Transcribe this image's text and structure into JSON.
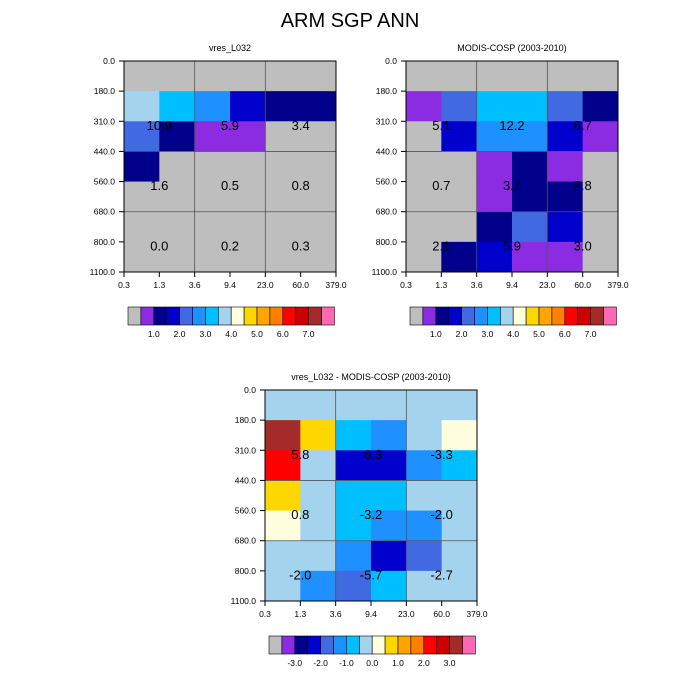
{
  "title": "ARM SGP ANN",
  "colors": {
    "missing": "#bebebe",
    "frame": "#000000",
    "region_line": "#555555",
    "abs_scale": [
      "#8b2be2",
      "#00008b",
      "#0000cd",
      "#4169e1",
      "#1e90ff",
      "#00bfff",
      "#a4d3ee",
      "#ffffe0",
      "#ffd700",
      "#ffa500",
      "#ff7f00",
      "#ff0000",
      "#cd0000",
      "#a52a2a",
      "#ff69b4"
    ],
    "diff_scale": [
      "#8b2be2",
      "#00008b",
      "#0000cd",
      "#4169e1",
      "#1e90ff",
      "#00bfff",
      "#a4d3ee",
      "#ffffe0",
      "#ffd700",
      "#ffa500",
      "#ff7f00",
      "#ff0000",
      "#cd0000",
      "#a52a2a",
      "#ff69b4"
    ]
  },
  "chart_data": [
    {
      "type": "heatmap",
      "title": "vres_L032",
      "x_ticks": [
        "0.3",
        "1.3",
        "3.6",
        "9.4",
        "23.0",
        "60.0",
        "379.0"
      ],
      "y_ticks": [
        "0.0",
        "180.0",
        "310.0",
        "440.0",
        "560.0",
        "680.0",
        "800.0",
        "1100.0"
      ],
      "cell_colors": [
        [
          "#bebebe",
          "#bebebe",
          "#bebebe",
          "#bebebe",
          "#bebebe",
          "#bebebe"
        ],
        [
          "#a4d3ee",
          "#00bfff",
          "#1e90ff",
          "#0000cd",
          "#00008b",
          "#00008b"
        ],
        [
          "#4169e1",
          "#00008b",
          "#8b2be2",
          "#8b2be2",
          "#bebebe",
          "#bebebe"
        ],
        [
          "#00008b",
          "#bebebe",
          "#bebebe",
          "#bebebe",
          "#bebebe",
          "#bebebe"
        ],
        [
          "#bebebe",
          "#bebebe",
          "#bebebe",
          "#bebebe",
          "#bebebe",
          "#bebebe"
        ],
        [
          "#bebebe",
          "#bebebe",
          "#bebebe",
          "#bebebe",
          "#bebebe",
          "#bebebe"
        ],
        [
          "#bebebe",
          "#bebebe",
          "#bebebe",
          "#bebebe",
          "#bebebe",
          "#bebebe"
        ]
      ],
      "regions": [
        [
          "10.9",
          "5.9",
          "3.4"
        ],
        [
          "1.6",
          "0.5",
          "0.8"
        ],
        [
          "0.0",
          "0.2",
          "0.3"
        ]
      ],
      "colorbar": {
        "boxes": [
          "#bebebe",
          "#8b2be2",
          "#00008b",
          "#0000cd",
          "#4169e1",
          "#1e90ff",
          "#00bfff",
          "#a4d3ee",
          "#ffffe0",
          "#ffd700",
          "#ffa500",
          "#ff7f00",
          "#ff0000",
          "#cd0000",
          "#a52a2a",
          "#ff69b4"
        ],
        "labels": [
          "1.0",
          "2.0",
          "3.0",
          "4.0",
          "5.0",
          "6.0",
          "7.0"
        ]
      }
    },
    {
      "type": "heatmap",
      "title": "MODIS-COSP (2003-2010)",
      "x_ticks": [
        "0.3",
        "1.3",
        "3.6",
        "9.4",
        "23.0",
        "60.0",
        "379.0"
      ],
      "y_ticks": [
        "0.0",
        "180.0",
        "310.0",
        "440.0",
        "560.0",
        "680.0",
        "800.0",
        "1100.0"
      ],
      "cell_colors": [
        [
          "#bebebe",
          "#bebebe",
          "#bebebe",
          "#bebebe",
          "#bebebe",
          "#bebebe"
        ],
        [
          "#8b2be2",
          "#4169e1",
          "#00bfff",
          "#00bfff",
          "#4169e1",
          "#00008b"
        ],
        [
          "#bebebe",
          "#0000cd",
          "#1e90ff",
          "#1e90ff",
          "#0000cd",
          "#8b2be2"
        ],
        [
          "#bebebe",
          "#bebebe",
          "#8b2be2",
          "#00008b",
          "#8b2be2",
          "#bebebe"
        ],
        [
          "#bebebe",
          "#bebebe",
          "#8b2be2",
          "#00008b",
          "#00008b",
          "#bebebe"
        ],
        [
          "#bebebe",
          "#bebebe",
          "#00008b",
          "#4169e1",
          "#0000cd",
          "#bebebe"
        ],
        [
          "#bebebe",
          "#00008b",
          "#0000cd",
          "#8b2be2",
          "#8b2be2",
          "#bebebe"
        ]
      ],
      "regions": [
        [
          "5.1",
          "12.2",
          "6.7"
        ],
        [
          "0.7",
          "3.7",
          "2.8"
        ],
        [
          "2.1",
          "5.9",
          "3.0"
        ]
      ],
      "colorbar": {
        "boxes": [
          "#bebebe",
          "#8b2be2",
          "#00008b",
          "#0000cd",
          "#4169e1",
          "#1e90ff",
          "#00bfff",
          "#a4d3ee",
          "#ffffe0",
          "#ffd700",
          "#ffa500",
          "#ff7f00",
          "#ff0000",
          "#cd0000",
          "#a52a2a",
          "#ff69b4"
        ],
        "labels": [
          "1.0",
          "2.0",
          "3.0",
          "4.0",
          "5.0",
          "6.0",
          "7.0"
        ]
      }
    },
    {
      "type": "heatmap",
      "title": "vres_L032 - MODIS-COSP (2003-2010)",
      "x_ticks": [
        "0.3",
        "1.3",
        "3.6",
        "9.4",
        "23.0",
        "60.0",
        "379.0"
      ],
      "y_ticks": [
        "0.0",
        "180.0",
        "310.0",
        "440.0",
        "560.0",
        "680.0",
        "800.0",
        "1100.0"
      ],
      "cell_colors": [
        [
          "#a4d3ee",
          "#a4d3ee",
          "#a4d3ee",
          "#a4d3ee",
          "#a4d3ee",
          "#a4d3ee"
        ],
        [
          "#a52a2a",
          "#ffd700",
          "#00bfff",
          "#1e90ff",
          "#a4d3ee",
          "#ffffe0"
        ],
        [
          "#ff0000",
          "#a4d3ee",
          "#0000cd",
          "#0000cd",
          "#1e90ff",
          "#00bfff"
        ],
        [
          "#ffd700",
          "#a4d3ee",
          "#00bfff",
          "#00bfff",
          "#a4d3ee",
          "#a4d3ee"
        ],
        [
          "#ffffe0",
          "#a4d3ee",
          "#00bfff",
          "#1e90ff",
          "#1e90ff",
          "#a4d3ee"
        ],
        [
          "#a4d3ee",
          "#a4d3ee",
          "#1e90ff",
          "#0000cd",
          "#4169e1",
          "#a4d3ee"
        ],
        [
          "#a4d3ee",
          "#1e90ff",
          "#4169e1",
          "#00bfff",
          "#a4d3ee",
          "#a4d3ee"
        ]
      ],
      "regions": [
        [
          "5.8",
          "-6.3",
          "-3.3"
        ],
        [
          "0.8",
          "-3.2",
          "-2.0"
        ],
        [
          "-2.0",
          "-5.7",
          "-2.7"
        ]
      ],
      "colorbar": {
        "boxes": [
          "#bebebe",
          "#8b2be2",
          "#00008b",
          "#0000cd",
          "#4169e1",
          "#1e90ff",
          "#00bfff",
          "#a4d3ee",
          "#ffffe0",
          "#ffd700",
          "#ffa500",
          "#ff7f00",
          "#ff0000",
          "#cd0000",
          "#a52a2a",
          "#ff69b4"
        ],
        "labels": [
          "-3.0",
          "-2.0",
          "-1.0",
          "0.0",
          "1.0",
          "2.0",
          "3.0"
        ]
      }
    }
  ]
}
